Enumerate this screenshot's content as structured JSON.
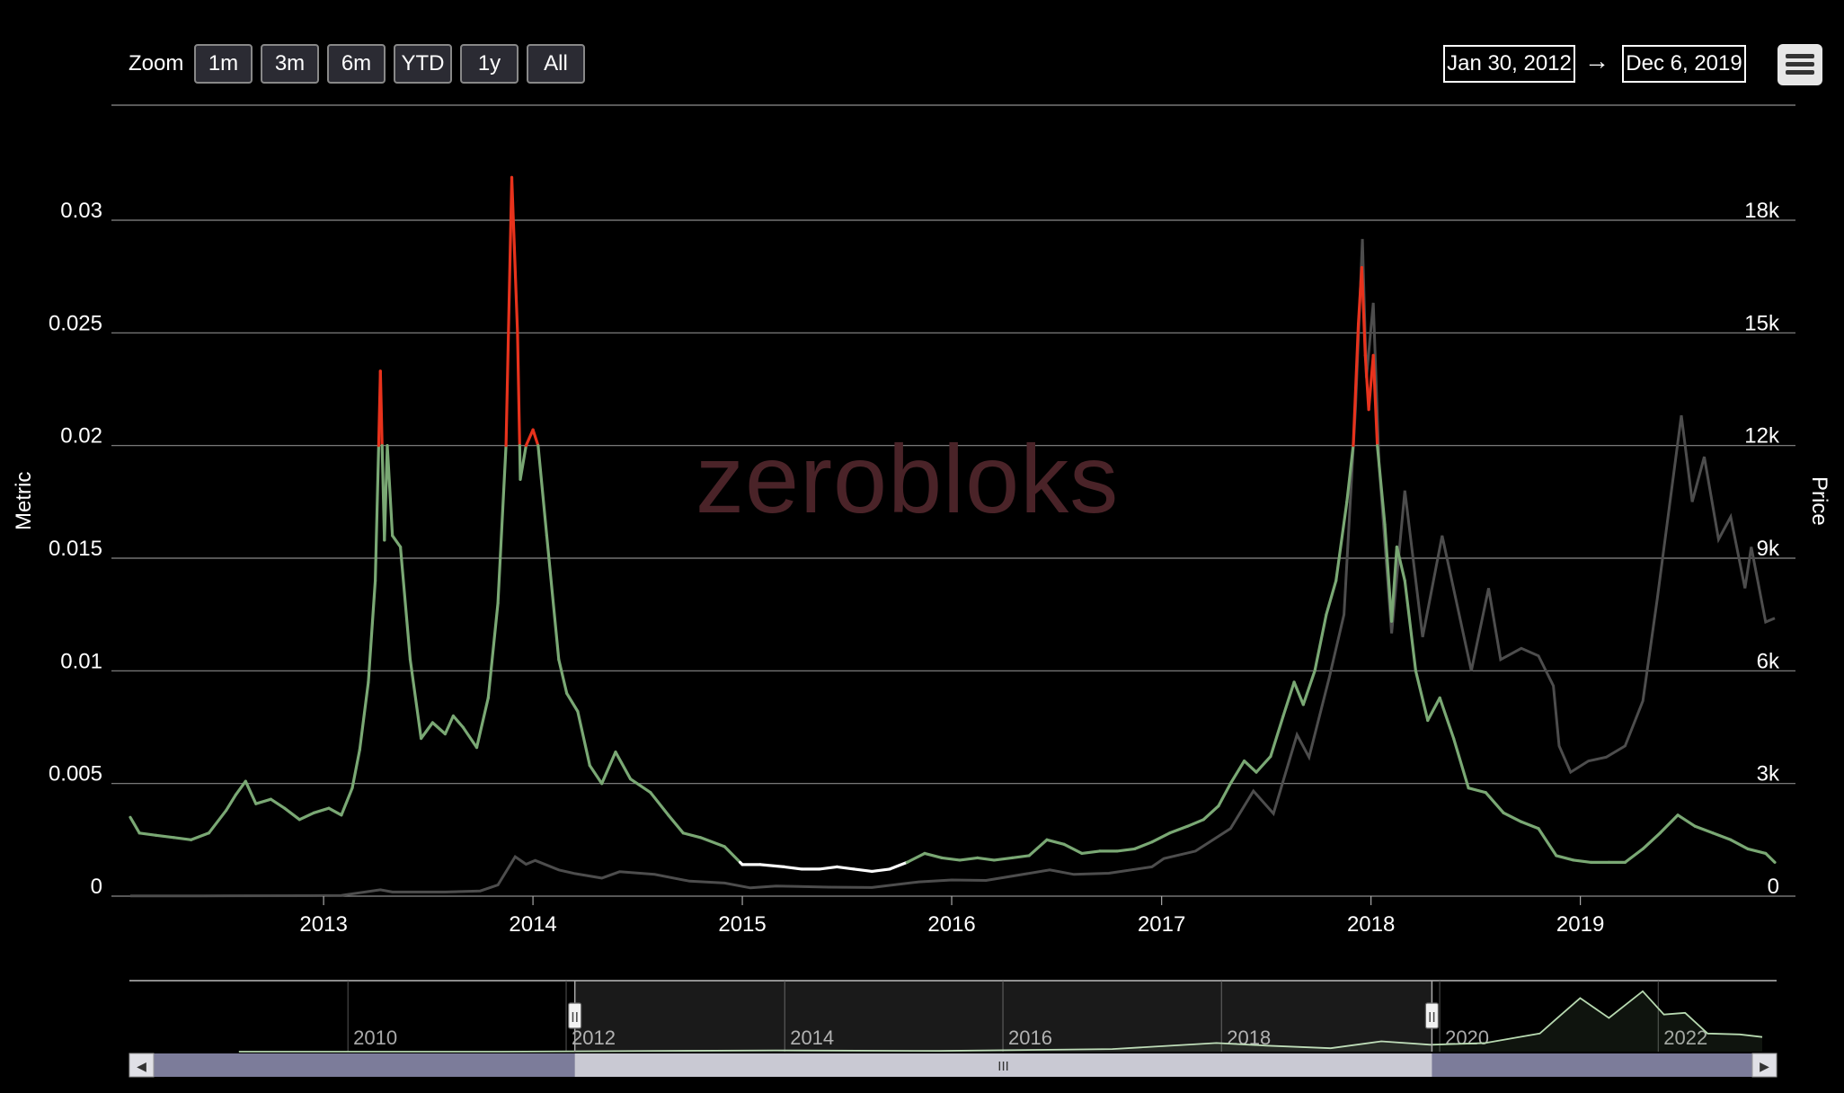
{
  "toolbar": {
    "zoom_label": "Zoom",
    "buttons": [
      "1m",
      "3m",
      "6m",
      "YTD",
      "1y",
      "All"
    ],
    "date_from": "Jan 30, 2012",
    "arrow": "→",
    "date_to": "Dec 6, 2019"
  },
  "watermark": "zerobloks",
  "colors": {
    "metric_normal": "#7aa874",
    "metric_high": "#e8321c",
    "metric_low": "#ffffff",
    "price": "#4d4d4d",
    "background": "#000000"
  },
  "chart_data": {
    "type": "line",
    "title": "",
    "xlabel": "",
    "ylabel_left": "Metric",
    "ylabel_right": "Price",
    "x_range": [
      "2012-01-30",
      "2019-12-06"
    ],
    "y_left_range": [
      0,
      0.035
    ],
    "y_right_range": [
      0,
      21000
    ],
    "y_left_ticks": [
      "0",
      "0.005",
      "0.01",
      "0.015",
      "0.02",
      "0.025",
      "0.03"
    ],
    "y_right_ticks": [
      "0",
      "3k",
      "6k",
      "9k",
      "12k",
      "15k",
      "18k"
    ],
    "x_ticks": [
      "2013",
      "2014",
      "2015",
      "2016",
      "2017",
      "2018",
      "2019"
    ],
    "grid": true,
    "thresholds": {
      "high": 0.02,
      "low": 0.0015
    },
    "series": [
      {
        "name": "Metric",
        "axis": "left",
        "points": [
          [
            "2012-01-30",
            0.0035
          ],
          [
            "2012-02-15",
            0.0028
          ],
          [
            "2012-03-15",
            0.0027
          ],
          [
            "2012-04-15",
            0.0026
          ],
          [
            "2012-05-15",
            0.0025
          ],
          [
            "2012-06-15",
            0.0028
          ],
          [
            "2012-07-15",
            0.0038
          ],
          [
            "2012-08-01",
            0.0045
          ],
          [
            "2012-08-18",
            0.0051
          ],
          [
            "2012-09-05",
            0.0041
          ],
          [
            "2012-10-01",
            0.0043
          ],
          [
            "2012-10-25",
            0.0039
          ],
          [
            "2012-11-20",
            0.0034
          ],
          [
            "2012-12-15",
            0.0037
          ],
          [
            "2013-01-10",
            0.0039
          ],
          [
            "2013-02-01",
            0.0036
          ],
          [
            "2013-02-20",
            0.0048
          ],
          [
            "2013-03-05",
            0.0065
          ],
          [
            "2013-03-20",
            0.0095
          ],
          [
            "2013-04-01",
            0.014
          ],
          [
            "2013-04-07",
            0.02
          ],
          [
            "2013-04-10",
            0.0233
          ],
          [
            "2013-04-13",
            0.02
          ],
          [
            "2013-04-17",
            0.0158
          ],
          [
            "2013-04-22",
            0.02
          ],
          [
            "2013-05-01",
            0.016
          ],
          [
            "2013-05-15",
            0.0155
          ],
          [
            "2013-06-01",
            0.0105
          ],
          [
            "2013-06-20",
            0.007
          ],
          [
            "2013-07-10",
            0.0077
          ],
          [
            "2013-08-01",
            0.0072
          ],
          [
            "2013-08-15",
            0.008
          ],
          [
            "2013-09-01",
            0.0075
          ],
          [
            "2013-09-25",
            0.0066
          ],
          [
            "2013-10-15",
            0.0088
          ],
          [
            "2013-11-01",
            0.013
          ],
          [
            "2013-11-15",
            0.02
          ],
          [
            "2013-11-25",
            0.0319
          ],
          [
            "2013-12-05",
            0.025
          ],
          [
            "2013-12-10",
            0.0185
          ],
          [
            "2013-12-20",
            0.02
          ],
          [
            "2014-01-01",
            0.0207
          ],
          [
            "2014-01-10",
            0.02
          ],
          [
            "2014-01-25",
            0.016
          ],
          [
            "2014-02-15",
            0.0105
          ],
          [
            "2014-03-01",
            0.009
          ],
          [
            "2014-03-20",
            0.0082
          ],
          [
            "2014-04-10",
            0.0058
          ],
          [
            "2014-05-01",
            0.005
          ],
          [
            "2014-05-25",
            0.0064
          ],
          [
            "2014-06-20",
            0.0052
          ],
          [
            "2014-07-25",
            0.0046
          ],
          [
            "2014-08-25",
            0.0036
          ],
          [
            "2014-09-20",
            0.0028
          ],
          [
            "2014-10-20",
            0.0026
          ],
          [
            "2014-12-01",
            0.0022
          ],
          [
            "2015-01-01",
            0.0014
          ],
          [
            "2015-02-01",
            0.0014
          ],
          [
            "2015-03-15",
            0.0013
          ],
          [
            "2015-04-15",
            0.0012
          ],
          [
            "2015-05-15",
            0.0012
          ],
          [
            "2015-06-15",
            0.0013
          ],
          [
            "2015-07-15",
            0.0012
          ],
          [
            "2015-08-15",
            0.0011
          ],
          [
            "2015-09-15",
            0.0012
          ],
          [
            "2015-10-15",
            0.0015
          ],
          [
            "2015-11-15",
            0.0019
          ],
          [
            "2015-12-15",
            0.0017
          ],
          [
            "2016-01-15",
            0.0016
          ],
          [
            "2016-02-15",
            0.0017
          ],
          [
            "2016-03-15",
            0.0016
          ],
          [
            "2016-04-15",
            0.0017
          ],
          [
            "2016-05-15",
            0.0018
          ],
          [
            "2016-06-15",
            0.0025
          ],
          [
            "2016-07-15",
            0.0023
          ],
          [
            "2016-08-15",
            0.0019
          ],
          [
            "2016-09-15",
            0.002
          ],
          [
            "2016-10-15",
            0.002
          ],
          [
            "2016-11-15",
            0.0021
          ],
          [
            "2016-12-15",
            0.0024
          ],
          [
            "2017-01-15",
            0.0028
          ],
          [
            "2017-02-15",
            0.0031
          ],
          [
            "2017-03-15",
            0.0034
          ],
          [
            "2017-04-10",
            0.004
          ],
          [
            "2017-05-01",
            0.005
          ],
          [
            "2017-05-25",
            0.006
          ],
          [
            "2017-06-15",
            0.0055
          ],
          [
            "2017-07-10",
            0.0062
          ],
          [
            "2017-08-01",
            0.008
          ],
          [
            "2017-08-20",
            0.0095
          ],
          [
            "2017-09-05",
            0.0085
          ],
          [
            "2017-09-25",
            0.01
          ],
          [
            "2017-10-15",
            0.0125
          ],
          [
            "2017-11-01",
            0.014
          ],
          [
            "2017-11-20",
            0.0175
          ],
          [
            "2017-12-01",
            0.02
          ],
          [
            "2017-12-10",
            0.0254
          ],
          [
            "2017-12-16",
            0.0279
          ],
          [
            "2017-12-22",
            0.024
          ],
          [
            "2017-12-28",
            0.0216
          ],
          [
            "2018-01-05",
            0.024
          ],
          [
            "2018-01-12",
            0.02
          ],
          [
            "2018-01-25",
            0.0165
          ],
          [
            "2018-02-06",
            0.0122
          ],
          [
            "2018-02-15",
            0.0155
          ],
          [
            "2018-03-01",
            0.014
          ],
          [
            "2018-03-20",
            0.01
          ],
          [
            "2018-04-10",
            0.0078
          ],
          [
            "2018-05-01",
            0.0088
          ],
          [
            "2018-05-25",
            0.007
          ],
          [
            "2018-06-20",
            0.0048
          ],
          [
            "2018-07-20",
            0.0046
          ],
          [
            "2018-08-20",
            0.0037
          ],
          [
            "2018-09-20",
            0.0033
          ],
          [
            "2018-10-20",
            0.003
          ],
          [
            "2018-11-20",
            0.0018
          ],
          [
            "2018-12-20",
            0.0016
          ],
          [
            "2019-01-20",
            0.0015
          ],
          [
            "2019-02-20",
            0.0015
          ],
          [
            "2019-03-20",
            0.0015
          ],
          [
            "2019-04-20",
            0.0021
          ],
          [
            "2019-05-20",
            0.0028
          ],
          [
            "2019-06-20",
            0.0036
          ],
          [
            "2019-07-20",
            0.0031
          ],
          [
            "2019-08-20",
            0.0028
          ],
          [
            "2019-09-20",
            0.0025
          ],
          [
            "2019-10-20",
            0.0021
          ],
          [
            "2019-11-20",
            0.0019
          ],
          [
            "2019-12-06",
            0.0015
          ]
        ]
      },
      {
        "name": "Price",
        "axis": "right",
        "points": [
          [
            "2012-01-30",
            6
          ],
          [
            "2012-06-01",
            6
          ],
          [
            "2012-12-01",
            13
          ],
          [
            "2013-02-01",
            20
          ],
          [
            "2013-04-10",
            170
          ],
          [
            "2013-05-01",
            110
          ],
          [
            "2013-08-01",
            110
          ],
          [
            "2013-10-01",
            140
          ],
          [
            "2013-11-01",
            300
          ],
          [
            "2013-12-01",
            1050
          ],
          [
            "2013-12-20",
            850
          ],
          [
            "2014-01-05",
            950
          ],
          [
            "2014-02-15",
            700
          ],
          [
            "2014-03-15",
            600
          ],
          [
            "2014-05-01",
            480
          ],
          [
            "2014-06-01",
            650
          ],
          [
            "2014-08-01",
            580
          ],
          [
            "2014-10-01",
            400
          ],
          [
            "2014-12-01",
            350
          ],
          [
            "2015-01-15",
            220
          ],
          [
            "2015-03-01",
            270
          ],
          [
            "2015-06-01",
            240
          ],
          [
            "2015-08-15",
            230
          ],
          [
            "2015-11-05",
            380
          ],
          [
            "2016-01-01",
            430
          ],
          [
            "2016-03-01",
            420
          ],
          [
            "2016-06-20",
            700
          ],
          [
            "2016-08-01",
            580
          ],
          [
            "2016-10-01",
            610
          ],
          [
            "2016-12-15",
            780
          ],
          [
            "2017-01-05",
            1000
          ],
          [
            "2017-03-01",
            1200
          ],
          [
            "2017-05-01",
            1800
          ],
          [
            "2017-06-10",
            2800
          ],
          [
            "2017-07-15",
            2200
          ],
          [
            "2017-08-25",
            4300
          ],
          [
            "2017-09-15",
            3700
          ],
          [
            "2017-10-20",
            5800
          ],
          [
            "2017-11-15",
            7500
          ],
          [
            "2017-12-05",
            13000
          ],
          [
            "2017-12-17",
            17500
          ],
          [
            "2017-12-24",
            13800
          ],
          [
            "2018-01-05",
            15800
          ],
          [
            "2018-01-15",
            11500
          ],
          [
            "2018-02-06",
            7000
          ],
          [
            "2018-03-01",
            10800
          ],
          [
            "2018-04-01",
            6900
          ],
          [
            "2018-05-05",
            9600
          ],
          [
            "2018-06-25",
            6000
          ],
          [
            "2018-07-25",
            8200
          ],
          [
            "2018-08-15",
            6300
          ],
          [
            "2018-09-20",
            6600
          ],
          [
            "2018-10-20",
            6400
          ],
          [
            "2018-11-15",
            5600
          ],
          [
            "2018-11-25",
            4000
          ],
          [
            "2018-12-15",
            3300
          ],
          [
            "2019-01-15",
            3600
          ],
          [
            "2019-02-15",
            3700
          ],
          [
            "2019-03-20",
            4000
          ],
          [
            "2019-04-20",
            5200
          ],
          [
            "2019-05-15",
            7900
          ],
          [
            "2019-06-26",
            12800
          ],
          [
            "2019-07-15",
            10500
          ],
          [
            "2019-08-05",
            11700
          ],
          [
            "2019-08-30",
            9500
          ],
          [
            "2019-09-20",
            10100
          ],
          [
            "2019-10-15",
            8200
          ],
          [
            "2019-10-26",
            9300
          ],
          [
            "2019-11-20",
            7300
          ],
          [
            "2019-12-06",
            7400
          ]
        ]
      }
    ]
  },
  "navigator": {
    "ticks": [
      "2010",
      "2012",
      "2014",
      "2016",
      "2018",
      "2020",
      "2022"
    ],
    "points": [
      [
        "2009-01-01",
        0
      ],
      [
        "2011-06-01",
        0
      ],
      [
        "2013-12-01",
        0.15
      ],
      [
        "2015-06-01",
        0.08
      ],
      [
        "2017-01-01",
        0.3
      ],
      [
        "2017-12-15",
        1.0
      ],
      [
        "2018-06-01",
        0.7
      ],
      [
        "2019-01-01",
        0.4
      ],
      [
        "2019-06-20",
        1.2
      ],
      [
        "2019-12-01",
        0.8
      ],
      [
        "2020-06-01",
        1.0
      ],
      [
        "2020-12-01",
        2.1
      ],
      [
        "2021-02-01",
        4.0
      ],
      [
        "2021-04-15",
        6.2
      ],
      [
        "2021-07-20",
        3.9
      ],
      [
        "2021-11-10",
        7.0
      ],
      [
        "2022-01-20",
        4.3
      ],
      [
        "2022-04-01",
        4.5
      ],
      [
        "2022-06-15",
        2.1
      ],
      [
        "2022-10-01",
        2.0
      ],
      [
        "2022-12-15",
        1.7
      ]
    ],
    "range_start": "2012-01-30",
    "range_end": "2019-12-06",
    "scroll_glyph": "III",
    "left_arrow": "◀",
    "right_arrow": "▶",
    "handle_glyph": "II"
  }
}
